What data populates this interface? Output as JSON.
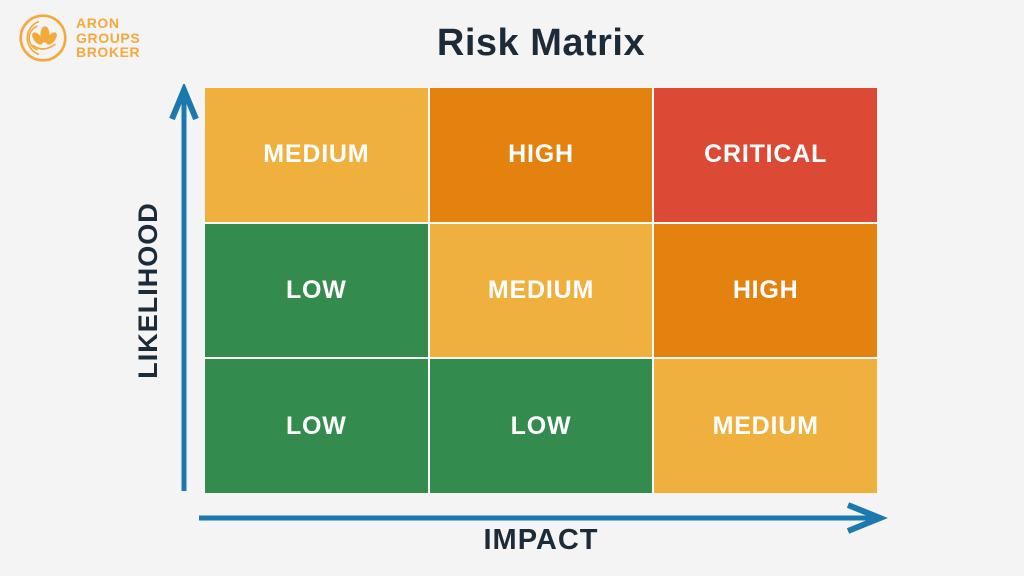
{
  "brand": {
    "line1": "ARON",
    "line2": "GROUPS",
    "line3": "BROKER"
  },
  "title": "Risk Matrix",
  "axes": {
    "y_label": "LIKELIHOOD",
    "x_label": "IMPACT"
  },
  "matrix": {
    "rows": [
      [
        {
          "label": "MEDIUM",
          "level": "medium"
        },
        {
          "label": "HIGH",
          "level": "high"
        },
        {
          "label": "CRITICAL",
          "level": "critical"
        }
      ],
      [
        {
          "label": "LOW",
          "level": "low"
        },
        {
          "label": "MEDIUM",
          "level": "medium"
        },
        {
          "label": "HIGH",
          "level": "high"
        }
      ],
      [
        {
          "label": "LOW",
          "level": "low"
        },
        {
          "label": "LOW",
          "level": "low"
        },
        {
          "label": "MEDIUM",
          "level": "medium"
        }
      ]
    ]
  },
  "colors": {
    "low": "#338b4d",
    "medium": "#f0b03d",
    "high": "#e3820f",
    "critical": "#dc4a35",
    "axis": "#1b79ad",
    "ink": "#1d2b38",
    "background": "#f4f4f5",
    "brand": "#f3a93c",
    "cell_text": "#ffffff"
  }
}
